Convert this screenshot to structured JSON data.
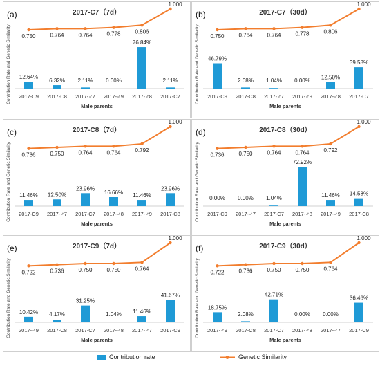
{
  "figure": {
    "y_axis_label": "Contribution Rate and Genetic Similarity",
    "x_axis_label": "Male parents",
    "legend": {
      "contribution": "Contribution rate",
      "similarity": "Genetic Similarity"
    },
    "colors": {
      "bar": "#1f9ad6",
      "line": "#f27d2d"
    }
  },
  "chart_data": [
    {
      "type": "bar+line",
      "panel_letter": "(a)",
      "title": "2017-C7（7d）",
      "categories": [
        "2017-C9",
        "2017-C8",
        "2017-♂7",
        "2017-♂9",
        "2017-♂8",
        "2017-C7"
      ],
      "contribution_values": [
        12.64,
        6.32,
        2.11,
        0.0,
        76.84,
        2.11
      ],
      "contribution_labels": [
        "12.64%",
        "6.32%",
        "2.11%",
        "0.00%",
        "76.84%",
        "2.11%"
      ],
      "similarity_values": [
        0.75,
        0.764,
        0.764,
        0.778,
        0.806,
        1.0
      ],
      "similarity_labels": [
        "0.750",
        "0.764",
        "0.764",
        "0.778",
        "0.806",
        "1.000"
      ],
      "xlabel": "Male parents",
      "ylabel": "Contribution Rate and Genetic Similarity"
    },
    {
      "type": "bar+line",
      "panel_letter": "(b)",
      "title": "2017-C7（30d）",
      "categories": [
        "2017-C9",
        "2017-C8",
        "2017-♂7",
        "2017-♂9",
        "2017-♂8",
        "2017-C7"
      ],
      "contribution_values": [
        46.79,
        2.08,
        1.04,
        0.0,
        12.5,
        39.58
      ],
      "contribution_labels": [
        "46.79%",
        "2.08%",
        "1.04%",
        "0.00%",
        "12.50%",
        "39.58%"
      ],
      "similarity_values": [
        0.75,
        0.764,
        0.764,
        0.778,
        0.806,
        1.0
      ],
      "similarity_labels": [
        "0.750",
        "0.764",
        "0.764",
        "0.778",
        "0.806",
        "1.000"
      ],
      "xlabel": "Male parents",
      "ylabel": "Contribution Rate and Genetic Similarity"
    },
    {
      "type": "bar+line",
      "panel_letter": "(c)",
      "title": "2017-C8（7d）",
      "categories": [
        "2017-C9",
        "2017-♂7",
        "2017-C7",
        "2017-♂8",
        "2017-♂9",
        "2017-C8"
      ],
      "contribution_values": [
        11.46,
        12.5,
        23.96,
        16.66,
        11.46,
        23.96
      ],
      "contribution_labels": [
        "11.46%",
        "12.50%",
        "23.96%",
        "16.66%",
        "11.46%",
        "23.96%"
      ],
      "similarity_values": [
        0.736,
        0.75,
        0.764,
        0.764,
        0.792,
        1.0
      ],
      "similarity_labels": [
        "0.736",
        "0.750",
        "0.764",
        "0.764",
        "0.792",
        "1.000"
      ],
      "xlabel": "Male parents",
      "ylabel": "Contribution Rate and Genetic Similarity"
    },
    {
      "type": "bar+line",
      "panel_letter": "(d)",
      "title": "2017-C8（30d）",
      "categories": [
        "2017-C9",
        "2017-♂7",
        "2017-C7",
        "2017-♂8",
        "2017-♂9",
        "2017-C8"
      ],
      "contribution_values": [
        0.0,
        0.0,
        1.04,
        72.92,
        11.46,
        14.58
      ],
      "contribution_labels": [
        "0.00%",
        "0.00%",
        "1.04%",
        "72.92%",
        "11.46%",
        "14.58%"
      ],
      "similarity_values": [
        0.736,
        0.75,
        0.764,
        0.764,
        0.792,
        1.0
      ],
      "similarity_labels": [
        "0.736",
        "0.750",
        "0.764",
        "0.764",
        "0.792",
        "1.000"
      ],
      "xlabel": "Male parents",
      "ylabel": "Contribution Rate and Genetic Similarity"
    },
    {
      "type": "bar+line",
      "panel_letter": "(e)",
      "title": "2017-C9（7d）",
      "categories": [
        "2017-♂9",
        "2017-C8",
        "2017-C7",
        "2017-♂8",
        "2017-♂7",
        "2017-C9"
      ],
      "contribution_values": [
        10.42,
        4.17,
        31.25,
        1.04,
        11.46,
        41.67
      ],
      "contribution_labels": [
        "10.42%",
        "4.17%",
        "31.25%",
        "1.04%",
        "11.46%",
        "41.67%"
      ],
      "similarity_values": [
        0.722,
        0.736,
        0.75,
        0.75,
        0.764,
        1.0
      ],
      "similarity_labels": [
        "0.722",
        "0.736",
        "0.750",
        "0.750",
        "0.764",
        "1.000"
      ],
      "xlabel": "Male parents",
      "ylabel": "Contribution Rate and Genetic Similarity"
    },
    {
      "type": "bar+line",
      "panel_letter": "(f)",
      "title": "2017-C9（30d）",
      "categories": [
        "2017-♂9",
        "2017-C8",
        "2017-C7",
        "2017-♂8",
        "2017-♂7",
        "2017-C9"
      ],
      "contribution_values": [
        18.75,
        2.08,
        42.71,
        0.0,
        0.0,
        36.46
      ],
      "contribution_labels": [
        "18.75%",
        "2.08%",
        "42.71%",
        "0.00%",
        "0.00%",
        "36.46%"
      ],
      "similarity_values": [
        0.722,
        0.736,
        0.75,
        0.75,
        0.764,
        1.0
      ],
      "similarity_labels": [
        "0.722",
        "0.736",
        "0.750",
        "0.750",
        "0.764",
        "1.000"
      ],
      "xlabel": "Male parents",
      "ylabel": "Contribution Rate and Genetic Similarity"
    }
  ]
}
